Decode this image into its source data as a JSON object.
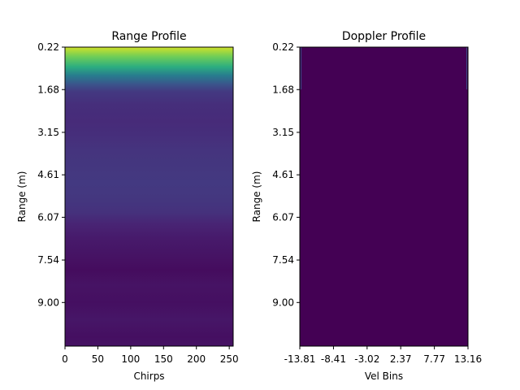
{
  "chart_data": [
    {
      "type": "heatmap",
      "title": "Range Profile",
      "xlabel": "Chirps",
      "ylabel": "Range (m)",
      "colormap": "viridis",
      "xlim": [
        0,
        256
      ],
      "ylim": [
        0.22,
        10.5
      ],
      "y_inverted": true,
      "x_ticks": [
        "0",
        "50",
        "100",
        "150",
        "200",
        "250"
      ],
      "x_tick_values": [
        0,
        50,
        100,
        150,
        200,
        250
      ],
      "y_ticks": [
        "0.22",
        "1.68",
        "3.15",
        "4.61",
        "6.07",
        "7.54",
        "9.00"
      ],
      "y_tick_values": [
        0.22,
        1.68,
        3.15,
        4.61,
        6.07,
        7.54,
        9.0
      ],
      "range_intensity": [
        [
          0.22,
          0.93
        ],
        [
          0.55,
          0.78
        ],
        [
          0.9,
          0.62
        ],
        [
          1.2,
          0.42
        ],
        [
          1.5,
          0.26
        ],
        [
          1.75,
          0.17
        ],
        [
          2.2,
          0.13
        ],
        [
          2.8,
          0.12
        ],
        [
          3.2,
          0.13
        ],
        [
          3.8,
          0.15
        ],
        [
          4.4,
          0.16
        ],
        [
          4.9,
          0.17
        ],
        [
          5.4,
          0.16
        ],
        [
          5.9,
          0.14
        ],
        [
          6.3,
          0.1
        ],
        [
          6.8,
          0.07
        ],
        [
          7.4,
          0.05
        ],
        [
          7.9,
          0.03
        ],
        [
          8.4,
          0.05
        ],
        [
          9.0,
          0.04
        ],
        [
          9.6,
          0.06
        ],
        [
          10.2,
          0.04
        ],
        [
          10.5,
          0.05
        ]
      ]
    },
    {
      "type": "heatmap",
      "title": "Doppler Profile",
      "xlabel": "Vel Bins",
      "ylabel": "Range (m)",
      "colormap": "viridis",
      "xlim": [
        -13.81,
        13.16
      ],
      "ylim": [
        0.22,
        10.5
      ],
      "y_inverted": true,
      "x_ticks": [
        "-13.81",
        "-8.41",
        "-3.02",
        "2.37",
        "7.77",
        "13.16"
      ],
      "x_tick_values": [
        -13.81,
        -8.41,
        -3.02,
        2.37,
        7.77,
        13.16
      ],
      "y_ticks": [
        "0.22",
        "1.68",
        "3.15",
        "4.61",
        "6.07",
        "7.54",
        "9.00"
      ],
      "y_tick_values": [
        0.22,
        1.68,
        3.15,
        4.61,
        6.07,
        7.54,
        9.0
      ],
      "uniform_intensity": 0.0
    }
  ]
}
